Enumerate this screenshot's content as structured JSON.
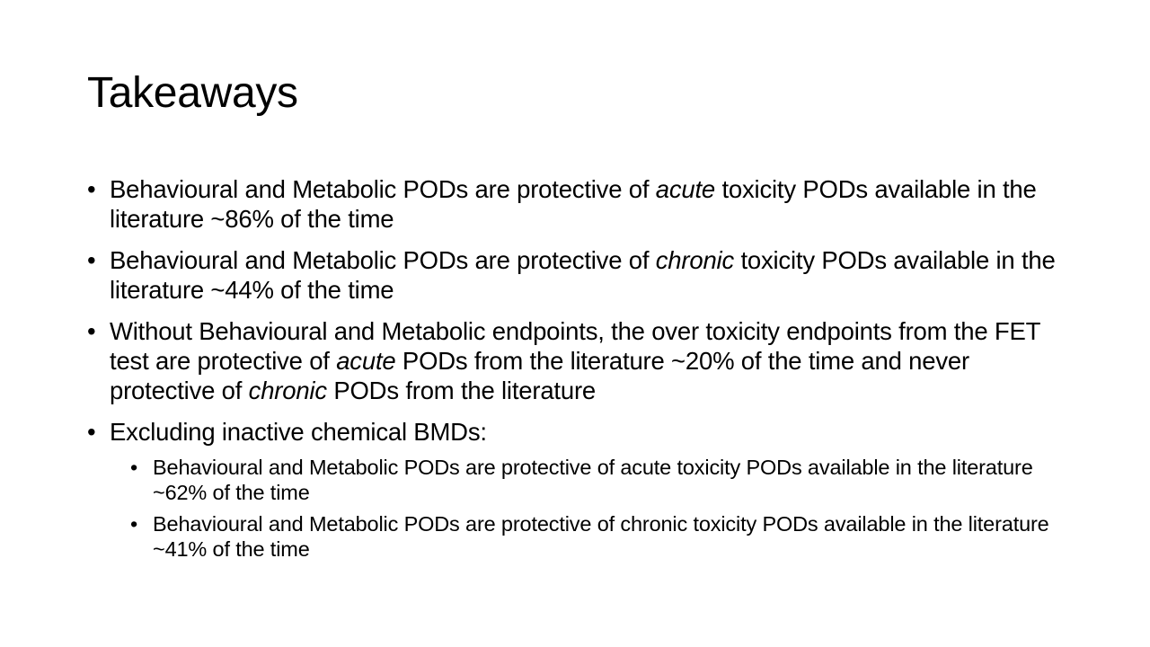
{
  "slide": {
    "title": "Takeaways",
    "bullet_glyph": "•",
    "bullets": [
      {
        "parts": [
          "Behavioural and Metabolic PODs are protective of ",
          "acute",
          " toxicity PODs available in the literature ~86% of the time"
        ]
      },
      {
        "parts": [
          "Behavioural and Metabolic PODs are protective of ",
          "chronic",
          " toxicity PODs available in the literature ~44% of the time"
        ]
      },
      {
        "parts": [
          "Without Behavioural and Metabolic endpoints, the over toxicity endpoints from the FET test are protective of ",
          "acute",
          " PODs from the literature ~20% of the time and never protective of ",
          "chronic",
          " PODs from the literature"
        ]
      },
      {
        "label": "Excluding inactive chemical BMDs:",
        "sub_bullets": [
          "Behavioural and Metabolic PODs are protective of acute toxicity PODs available in the literature ~62% of the time",
          "Behavioural and Metabolic PODs are protective of chronic toxicity PODs available in the literature ~41% of the time"
        ]
      }
    ]
  }
}
